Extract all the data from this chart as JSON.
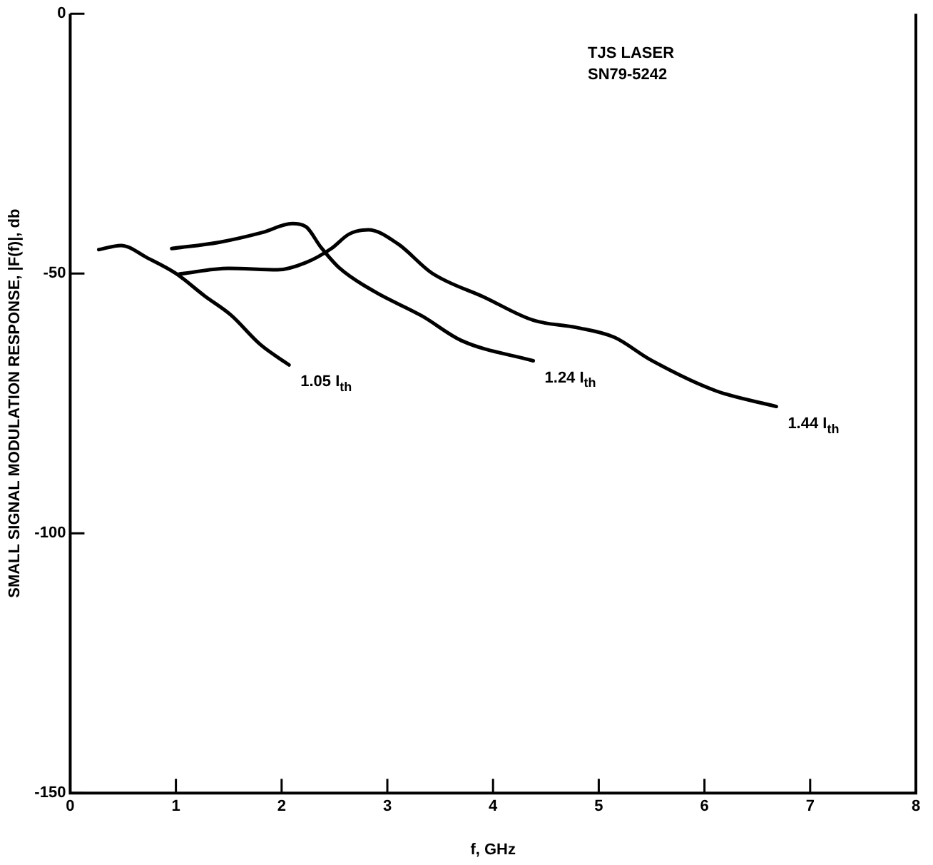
{
  "chart_data": {
    "type": "line",
    "xlabel": "f, GHz",
    "ylabel": "SMALL SIGNAL MODULATION RESPONSE, |F(f)|, db",
    "annotations": [
      "TJS LASER",
      "SN79-5242"
    ],
    "xlim": [
      0,
      8
    ],
    "xticks": [
      0,
      1,
      2,
      3,
      4,
      5,
      6,
      7,
      8
    ],
    "ylim": [
      -150,
      0
    ],
    "yticks": [
      0,
      -50,
      -100,
      -150
    ],
    "grid": false,
    "legend": false,
    "marker": "none",
    "line_style": "solid",
    "series": [
      {
        "name": "1.05 I$_{th}$",
        "color": "#000000",
        "x": [
          0.27,
          0.48,
          0.73,
          1.0,
          1.27,
          1.52,
          1.8,
          2.07
        ],
        "values": [
          -45.4,
          -44.6,
          -47,
          -50,
          -54.3,
          -58,
          -63.7,
          -67.6
        ]
      },
      {
        "name": "1.24 I$_{th}$",
        "color": "#000000",
        "x": [
          0.96,
          1.41,
          1.82,
          2.1,
          2.23,
          2.37,
          2.55,
          2.88,
          3.33,
          3.7,
          4.38
        ],
        "values": [
          -45.2,
          -44,
          -42.1,
          -40.4,
          -41,
          -44.9,
          -49,
          -53.5,
          -58.2,
          -62.9,
          -66.8
        ]
      },
      {
        "name": "1.44 I$_{th}$",
        "color": "#000000",
        "x": [
          1.03,
          1.5,
          1.96,
          2.23,
          2.47,
          2.64,
          2.82,
          3.1,
          3.42,
          3.92,
          4.38,
          4.79,
          5.15,
          5.48,
          6.11,
          6.68
        ],
        "values": [
          -50.1,
          -49,
          -49.3,
          -47.9,
          -45.2,
          -42.4,
          -41.6,
          -44.3,
          -49.9,
          -54.6,
          -59,
          -60.4,
          -62.3,
          -66.5,
          -72.6,
          -75.6
        ]
      }
    ]
  }
}
